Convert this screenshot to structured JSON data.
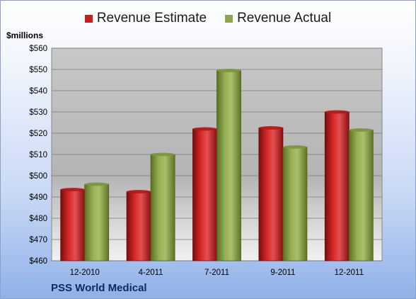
{
  "legend": {
    "estimate_label": "Revenue Estimate",
    "actual_label": "Revenue Actual"
  },
  "colors": {
    "estimate": "#c81e1e",
    "actual": "#8ea64a"
  },
  "y_unit_label": "$millions",
  "company": "PSS World Medical",
  "chart_data": {
    "type": "bar",
    "categories": [
      "12-2010",
      "4-2011",
      "7-2011",
      "9-2011",
      "12-2011"
    ],
    "series": [
      {
        "name": "Revenue Estimate",
        "values": [
          493.5,
          492.5,
          522,
          522.5,
          530
        ]
      },
      {
        "name": "Revenue Actual",
        "values": [
          496,
          510,
          549.5,
          513.5,
          521.5
        ]
      }
    ],
    "ylim": [
      460,
      560
    ],
    "y_ticks": [
      "$460",
      "$470",
      "$480",
      "$490",
      "$500",
      "$510",
      "$520",
      "$530",
      "$540",
      "$550",
      "$560"
    ],
    "grid": true,
    "legend_position": "top"
  }
}
